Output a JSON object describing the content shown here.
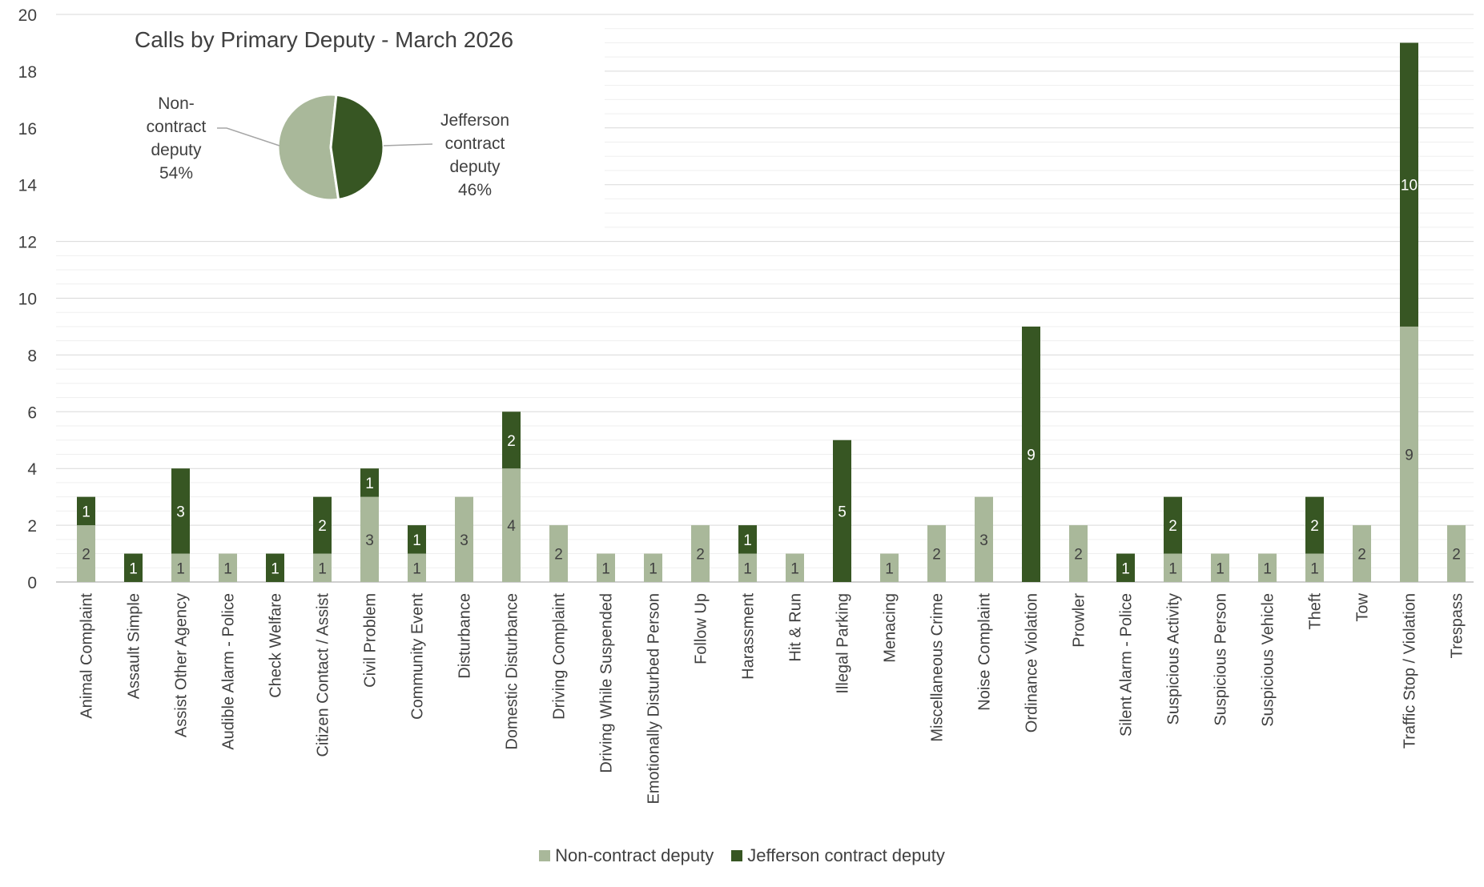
{
  "chart_data": [
    {
      "type": "bar",
      "stacked": true,
      "ylim": [
        0,
        20
      ],
      "yticks": [
        "0",
        "2",
        "4",
        "6",
        "8",
        "10",
        "12",
        "14",
        "16",
        "18",
        "20"
      ],
      "grid": true,
      "categories": [
        "Animal Complaint",
        "Assault Simple",
        "Assist Other Agency",
        "Audible Alarm - Police",
        "Check Welfare",
        "Citizen Contact / Assist",
        "Civil Problem",
        "Community Event",
        "Disturbance",
        "Domestic Disturbance",
        "Driving Complaint",
        "Driving While Suspended",
        "Emotionally Disturbed Person",
        "Follow Up",
        "Harassment",
        "Hit & Run",
        "Illegal Parking",
        "Menacing",
        "Miscellaneous Crime",
        "Noise Complaint",
        "Ordinance Violation",
        "Prowler",
        "Silent Alarm - Police",
        "Suspicious Activity",
        "Suspicious Person",
        "Suspicious Vehicle",
        "Theft",
        "Tow",
        "Traffic Stop / Violation",
        "Trespass"
      ],
      "series": [
        {
          "name": "Non-contract deputy",
          "color": "#a9b89a",
          "values": [
            2,
            0,
            1,
            1,
            0,
            1,
            3,
            1,
            3,
            4,
            2,
            1,
            1,
            2,
            1,
            1,
            0,
            1,
            2,
            3,
            0,
            2,
            0,
            1,
            1,
            1,
            1,
            2,
            9,
            2
          ]
        },
        {
          "name": "Jefferson contract deputy",
          "color": "#375623",
          "values": [
            1,
            1,
            3,
            0,
            1,
            2,
            1,
            1,
            0,
            2,
            0,
            0,
            0,
            0,
            1,
            0,
            5,
            0,
            0,
            0,
            9,
            0,
            1,
            2,
            0,
            0,
            2,
            0,
            10,
            0
          ]
        }
      ],
      "legend_position": "bottom"
    },
    {
      "type": "pie",
      "title": "Calls by Primary Deputy - March 2026",
      "slices": [
        {
          "label_lines": [
            "Non-",
            "contract",
            "deputy",
            "54%"
          ],
          "value": 54,
          "color": "#a9b89a"
        },
        {
          "label_lines": [
            "Jefferson",
            "contract",
            "deputy",
            "46%"
          ],
          "value": 46,
          "color": "#375623"
        }
      ]
    }
  ]
}
